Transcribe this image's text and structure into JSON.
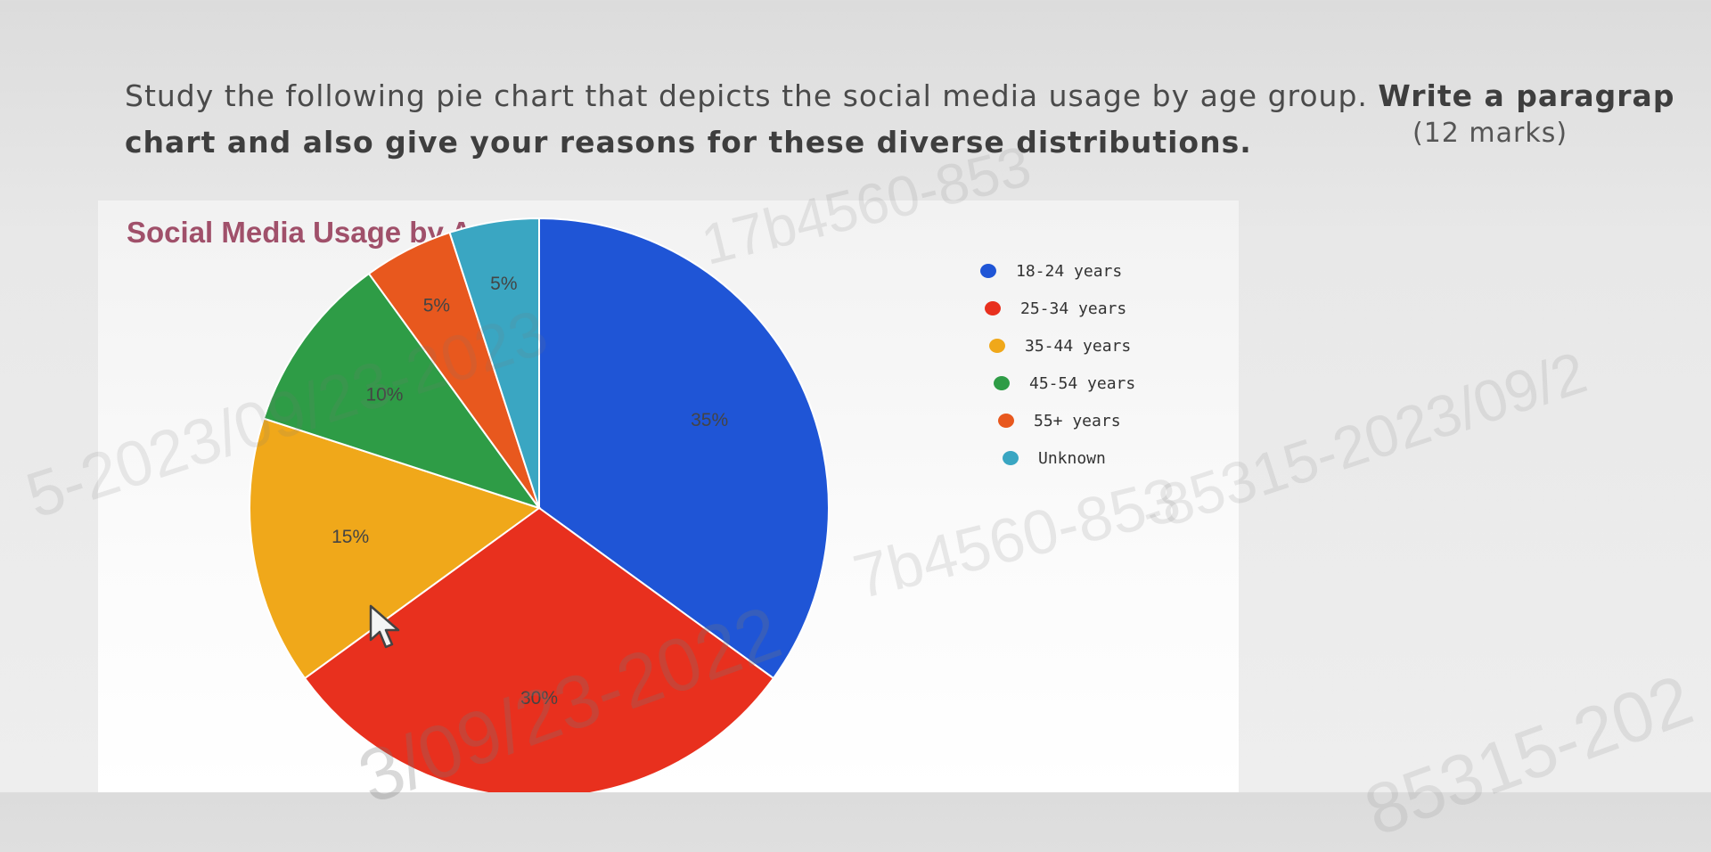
{
  "question": {
    "line1": "Study the following pie chart that depicts the social media usage by age group.",
    "line1_bold": "Write a paragrap",
    "line2": "chart and also give your reasons for these diverse distributions.",
    "marks": "(12 marks)"
  },
  "watermarks": [
    "17b4560-853",
    "5-2023/09/23-2023",
    "3/09/23-2022",
    "7b4560-853",
    "-85315-2023/09/2",
    "85315-202"
  ],
  "chart_data": {
    "type": "pie",
    "title": "Social Media Usage by Age Group",
    "categories": [
      "18-24 years",
      "25-34 years",
      "35-44 years",
      "45-54 years",
      "55+ years",
      "Unknown"
    ],
    "values": [
      35,
      30,
      15,
      10,
      5,
      5
    ],
    "labels": [
      "35%",
      "30%",
      "15%",
      "10%",
      "5%",
      "5%"
    ],
    "colors": [
      "#1f55d6",
      "#e8301e",
      "#f0a81a",
      "#2e9c46",
      "#e8581e",
      "#3aa6c2"
    ],
    "legend_position": "right"
  }
}
